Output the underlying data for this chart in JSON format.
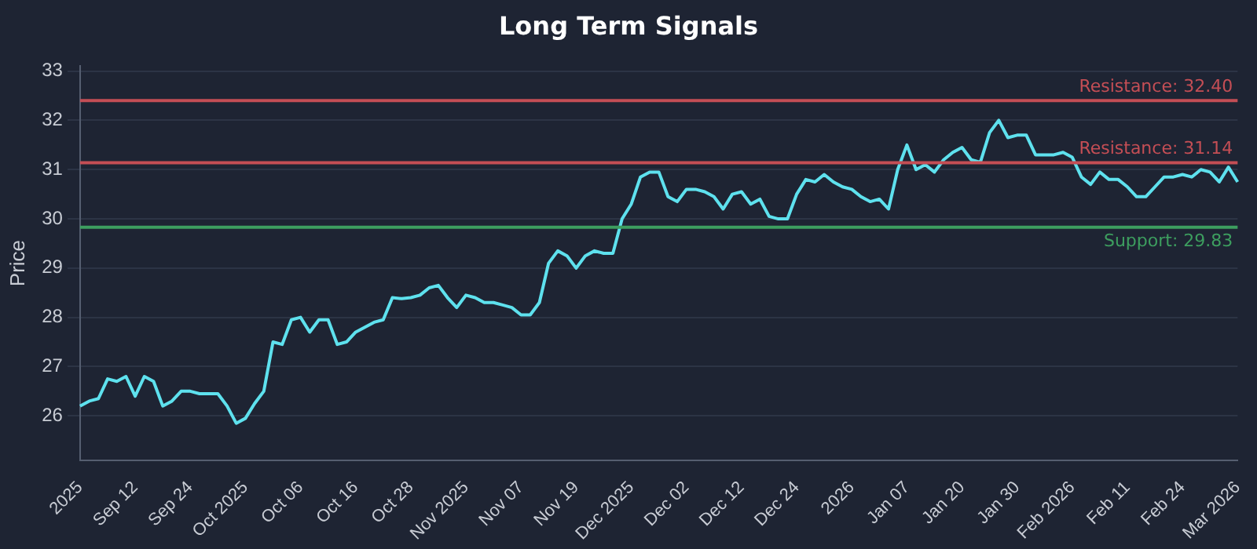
{
  "chart_data": {
    "type": "line",
    "title": "Long Term Signals",
    "ylabel": "Price",
    "categories": [
      "2025",
      null,
      null,
      null,
      null,
      null,
      "Sep 12",
      null,
      null,
      null,
      null,
      null,
      "Sep 24",
      null,
      null,
      null,
      null,
      null,
      "Oct 2025",
      null,
      null,
      null,
      null,
      null,
      "Oct 06",
      null,
      null,
      null,
      null,
      null,
      "Oct 16",
      null,
      null,
      null,
      null,
      null,
      "Oct 28",
      null,
      null,
      null,
      null,
      null,
      "Nov 2025",
      null,
      null,
      null,
      null,
      null,
      "Nov 07",
      null,
      null,
      null,
      null,
      null,
      "Nov 19",
      null,
      null,
      null,
      null,
      null,
      "Dec 2025",
      null,
      null,
      null,
      null,
      null,
      "Dec 02",
      null,
      null,
      null,
      null,
      null,
      "Dec 12",
      null,
      null,
      null,
      null,
      null,
      "Dec 24",
      null,
      null,
      null,
      null,
      null,
      "2026",
      null,
      null,
      null,
      null,
      null,
      "Jan 07",
      null,
      null,
      null,
      null,
      null,
      "Jan 20",
      null,
      null,
      null,
      null,
      null,
      "Jan 30",
      null,
      null,
      null,
      null,
      null,
      "Feb 2026",
      null,
      null,
      null,
      null,
      null,
      "Feb 11",
      null,
      null,
      null,
      null,
      null,
      "Feb 24",
      null,
      null,
      null,
      null,
      null,
      "Mar 2026"
    ],
    "series": [
      {
        "color": "#5ee1ee",
        "values": [
          26.2,
          26.3,
          26.35,
          26.75,
          26.7,
          26.8,
          26.4,
          26.8,
          26.7,
          26.2,
          26.3,
          26.5,
          26.5,
          26.45,
          26.45,
          26.45,
          26.2,
          25.85,
          25.95,
          26.25,
          26.5,
          27.5,
          27.45,
          27.95,
          28.0,
          27.7,
          27.95,
          27.95,
          27.45,
          27.5,
          27.7,
          27.8,
          27.9,
          27.95,
          28.4,
          28.38,
          28.4,
          28.45,
          28.6,
          28.65,
          28.4,
          28.2,
          28.45,
          28.4,
          28.3,
          28.3,
          28.25,
          28.2,
          28.05,
          28.05,
          28.3,
          29.1,
          29.35,
          29.25,
          29.0,
          29.25,
          29.35,
          29.3,
          29.3,
          30.0,
          30.3,
          30.85,
          30.95,
          30.95,
          30.45,
          30.35,
          30.6,
          30.6,
          30.55,
          30.45,
          30.2,
          30.5,
          30.55,
          30.3,
          30.4,
          30.05,
          30.0,
          30.0,
          30.5,
          30.8,
          30.75,
          30.9,
          30.75,
          30.65,
          30.6,
          30.45,
          30.35,
          30.4,
          30.2,
          31.0,
          31.5,
          31.0,
          31.1,
          30.95,
          31.2,
          31.35,
          31.45,
          31.2,
          31.15,
          31.75,
          32.0,
          31.65,
          31.7,
          31.7,
          31.3,
          31.3,
          31.3,
          31.35,
          31.25,
          30.85,
          30.7,
          30.95,
          30.8,
          30.8,
          30.65,
          30.45,
          30.45,
          30.65,
          30.85,
          30.85,
          30.9,
          30.85,
          31.0,
          30.95,
          30.75,
          31.05,
          30.75
        ]
      }
    ],
    "ylim": [
      25.1,
      33.1
    ],
    "yticks": [
      26,
      27,
      28,
      29,
      30,
      31,
      32,
      33
    ],
    "grid": "y",
    "legend": false,
    "marker": "none",
    "line_style": "solid",
    "ref_lines": [
      {
        "axis": "y",
        "value": 32.4,
        "label": "Resistance: 32.40",
        "color": "#c44e55"
      },
      {
        "axis": "y",
        "value": 31.14,
        "label": "Resistance: 31.14",
        "color": "#c44e55"
      },
      {
        "axis": "y",
        "value": 29.83,
        "label": "Support: 29.83",
        "color": "#3d9e5f"
      }
    ]
  }
}
